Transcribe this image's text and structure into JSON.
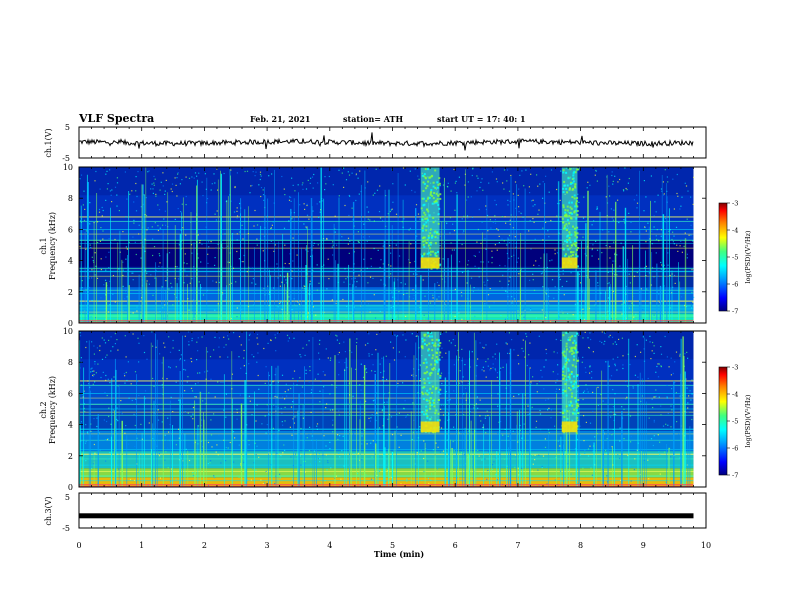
{
  "header": {
    "title": "VLF Spectra",
    "date": "Feb. 21, 2021",
    "station": "station= ATH",
    "start_ut": "start  UT  =   17: 40: 1"
  },
  "chart_data": [
    {
      "type": "line",
      "panel": "ch1-waveform",
      "ylabel": "ch.1(V)",
      "ylim": [
        -5,
        5
      ],
      "yticks": [
        "5",
        "-5"
      ],
      "x_range": [
        0,
        10
      ],
      "description_values": "noisy trace near 0 V with spikes"
    },
    {
      "type": "heatmap",
      "panel": "ch1-spectrogram",
      "ylabel_top": "ch.1",
      "ylabel": "Frequency (kHz)",
      "ylim": [
        0,
        10
      ],
      "yticks": [
        "0",
        "2",
        "4",
        "6",
        "8",
        "10"
      ],
      "x_range": [
        0,
        10
      ],
      "colorbar": {
        "label": "log(PSD)(V²/Hz)",
        "range": [
          -7,
          -3
        ],
        "ticks": [
          "-3",
          "-4",
          "-5",
          "-6",
          "-7"
        ]
      },
      "features": [
        {
          "type": "broadband-burst",
          "x_start": 5.45,
          "x_end": 5.75,
          "f_low": 3.5,
          "f_high": 10
        },
        {
          "type": "broadband-burst",
          "x_start": 7.7,
          "x_end": 7.95,
          "f_low": 3.5,
          "f_high": 10
        }
      ]
    },
    {
      "type": "heatmap",
      "panel": "ch2-spectrogram",
      "ylabel_top": "ch.2",
      "ylabel": "Frequency (kHz)",
      "ylim": [
        0,
        10
      ],
      "yticks": [
        "0",
        "2",
        "4",
        "6",
        "8",
        "10"
      ],
      "x_range": [
        0,
        10
      ],
      "colorbar": {
        "label": "log(PSD)(V²/Hz)",
        "range": [
          -7,
          -3
        ],
        "ticks": [
          "-3",
          "-4",
          "-5",
          "-6",
          "-7"
        ]
      },
      "features": [
        {
          "type": "broadband-burst",
          "x_start": 5.45,
          "x_end": 5.75,
          "f_low": 3.5,
          "f_high": 10
        },
        {
          "type": "broadband-burst",
          "x_start": 7.7,
          "x_end": 7.95,
          "f_low": 3.5,
          "f_high": 10
        }
      ]
    },
    {
      "type": "line",
      "panel": "ch3-waveform",
      "ylabel": "ch.3(V)",
      "ylim": [
        -5,
        5
      ],
      "yticks": [
        "5",
        "-5"
      ],
      "x_range": [
        0,
        10
      ],
      "values_constant": -1.5
    }
  ],
  "xaxis": {
    "label": "Time (min)",
    "ticks": [
      "0",
      "1",
      "2",
      "3",
      "4",
      "5",
      "6",
      "7",
      "8",
      "9",
      "10"
    ]
  },
  "colors": {
    "colormap": [
      "#000080",
      "#0000ff",
      "#00a0ff",
      "#00ffff",
      "#40ff80",
      "#ffff00",
      "#ff8000",
      "#ff0000",
      "#800000"
    ]
  }
}
